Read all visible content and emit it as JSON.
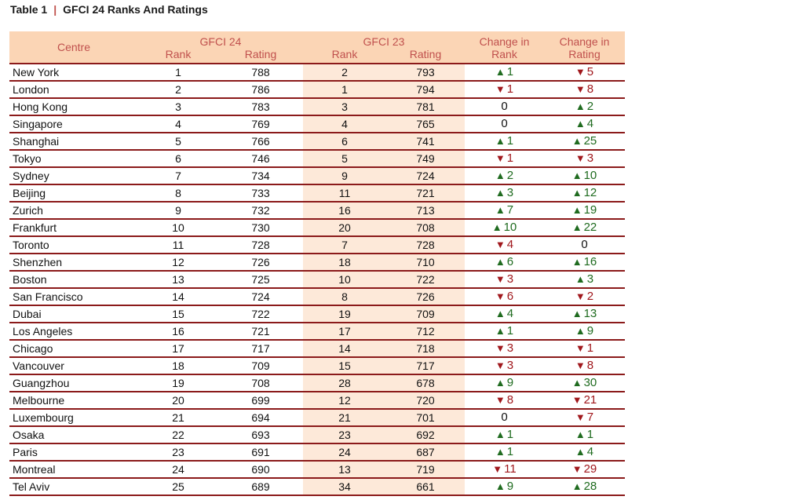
{
  "caption": {
    "label": "Table  1",
    "separator": "|",
    "title": "GFCI 24 Ranks And Ratings"
  },
  "colors": {
    "header_bg": "#fbd5b5",
    "header_text": "#c0504d",
    "shade": "#fde9d9",
    "rule": "#8b1a1a",
    "up": "#1f6b1f",
    "down": "#a0171c"
  },
  "headers": {
    "centre": "Centre",
    "gfci24": "GFCI 24",
    "gfci23": "GFCI 23",
    "change_rank_1": "Change in",
    "change_rank_2": "Rank",
    "change_rating_1": "Change in",
    "change_rating_2": "Rating",
    "rank": "Rank",
    "rating": "Rating"
  },
  "rows": [
    {
      "centre": "New York",
      "rank24": "1",
      "rating24": "788",
      "rank23": "2",
      "rating23": "793",
      "rank_change": {
        "dir": "up",
        "value": "1"
      },
      "rating_change": {
        "dir": "down",
        "value": "5"
      }
    },
    {
      "centre": "London",
      "rank24": "2",
      "rating24": "786",
      "rank23": "1",
      "rating23": "794",
      "rank_change": {
        "dir": "down",
        "value": "1"
      },
      "rating_change": {
        "dir": "down",
        "value": "8"
      }
    },
    {
      "centre": "Hong Kong",
      "rank24": "3",
      "rating24": "783",
      "rank23": "3",
      "rating23": "781",
      "rank_change": {
        "dir": "none",
        "value": "0"
      },
      "rating_change": {
        "dir": "up",
        "value": "2"
      }
    },
    {
      "centre": "Singapore",
      "rank24": "4",
      "rating24": "769",
      "rank23": "4",
      "rating23": "765",
      "rank_change": {
        "dir": "none",
        "value": "0"
      },
      "rating_change": {
        "dir": "up",
        "value": "4"
      }
    },
    {
      "centre": "Shanghai",
      "rank24": "5",
      "rating24": "766",
      "rank23": "6",
      "rating23": "741",
      "rank_change": {
        "dir": "up",
        "value": "1"
      },
      "rating_change": {
        "dir": "up",
        "value": "25"
      }
    },
    {
      "centre": "Tokyo",
      "rank24": "6",
      "rating24": "746",
      "rank23": "5",
      "rating23": "749",
      "rank_change": {
        "dir": "down",
        "value": "1"
      },
      "rating_change": {
        "dir": "down",
        "value": "3"
      }
    },
    {
      "centre": "Sydney",
      "rank24": "7",
      "rating24": "734",
      "rank23": "9",
      "rating23": "724",
      "rank_change": {
        "dir": "up",
        "value": "2"
      },
      "rating_change": {
        "dir": "up",
        "value": "10"
      }
    },
    {
      "centre": "Beijing",
      "rank24": "8",
      "rating24": "733",
      "rank23": "11",
      "rating23": "721",
      "rank_change": {
        "dir": "up",
        "value": "3"
      },
      "rating_change": {
        "dir": "up",
        "value": "12"
      }
    },
    {
      "centre": "Zurich",
      "rank24": "9",
      "rating24": "732",
      "rank23": "16",
      "rating23": "713",
      "rank_change": {
        "dir": "up",
        "value": "7"
      },
      "rating_change": {
        "dir": "up",
        "value": "19"
      }
    },
    {
      "centre": "Frankfurt",
      "rank24": "10",
      "rating24": "730",
      "rank23": "20",
      "rating23": "708",
      "rank_change": {
        "dir": "up",
        "value": "10"
      },
      "rating_change": {
        "dir": "up",
        "value": "22"
      }
    },
    {
      "centre": "Toronto",
      "rank24": "11",
      "rating24": "728",
      "rank23": "7",
      "rating23": "728",
      "rank_change": {
        "dir": "down",
        "value": "4"
      },
      "rating_change": {
        "dir": "none",
        "value": "0"
      }
    },
    {
      "centre": "Shenzhen",
      "rank24": "12",
      "rating24": "726",
      "rank23": "18",
      "rating23": "710",
      "rank_change": {
        "dir": "up",
        "value": "6"
      },
      "rating_change": {
        "dir": "up",
        "value": "16"
      }
    },
    {
      "centre": "Boston",
      "rank24": "13",
      "rating24": "725",
      "rank23": "10",
      "rating23": "722",
      "rank_change": {
        "dir": "down",
        "value": "3"
      },
      "rating_change": {
        "dir": "up",
        "value": "3"
      }
    },
    {
      "centre": "San Francisco",
      "rank24": "14",
      "rating24": "724",
      "rank23": "8",
      "rating23": "726",
      "rank_change": {
        "dir": "down",
        "value": "6"
      },
      "rating_change": {
        "dir": "down",
        "value": "2"
      }
    },
    {
      "centre": "Dubai",
      "rank24": "15",
      "rating24": "722",
      "rank23": "19",
      "rating23": "709",
      "rank_change": {
        "dir": "up",
        "value": "4"
      },
      "rating_change": {
        "dir": "up",
        "value": "13"
      }
    },
    {
      "centre": "Los Angeles",
      "rank24": "16",
      "rating24": "721",
      "rank23": "17",
      "rating23": "712",
      "rank_change": {
        "dir": "up",
        "value": "1"
      },
      "rating_change": {
        "dir": "up",
        "value": "9"
      }
    },
    {
      "centre": "Chicago",
      "rank24": "17",
      "rating24": "717",
      "rank23": "14",
      "rating23": "718",
      "rank_change": {
        "dir": "down",
        "value": "3"
      },
      "rating_change": {
        "dir": "down",
        "value": "1"
      }
    },
    {
      "centre": "Vancouver",
      "rank24": "18",
      "rating24": "709",
      "rank23": "15",
      "rating23": "717",
      "rank_change": {
        "dir": "down",
        "value": "3"
      },
      "rating_change": {
        "dir": "down",
        "value": "8"
      }
    },
    {
      "centre": "Guangzhou",
      "rank24": "19",
      "rating24": "708",
      "rank23": "28",
      "rating23": "678",
      "rank_change": {
        "dir": "up",
        "value": "9"
      },
      "rating_change": {
        "dir": "up",
        "value": "30"
      }
    },
    {
      "centre": "Melbourne",
      "rank24": "20",
      "rating24": "699",
      "rank23": "12",
      "rating23": "720",
      "rank_change": {
        "dir": "down",
        "value": "8"
      },
      "rating_change": {
        "dir": "down",
        "value": "21"
      }
    },
    {
      "centre": "Luxembourg",
      "rank24": "21",
      "rating24": "694",
      "rank23": "21",
      "rating23": "701",
      "rank_change": {
        "dir": "none",
        "value": "0"
      },
      "rating_change": {
        "dir": "down",
        "value": "7"
      }
    },
    {
      "centre": "Osaka",
      "rank24": "22",
      "rating24": "693",
      "rank23": "23",
      "rating23": "692",
      "rank_change": {
        "dir": "up",
        "value": "1"
      },
      "rating_change": {
        "dir": "up",
        "value": "1"
      }
    },
    {
      "centre": "Paris",
      "rank24": "23",
      "rating24": "691",
      "rank23": "24",
      "rating23": "687",
      "rank_change": {
        "dir": "up",
        "value": "1"
      },
      "rating_change": {
        "dir": "up",
        "value": "4"
      }
    },
    {
      "centre": "Montreal",
      "rank24": "24",
      "rating24": "690",
      "rank23": "13",
      "rating23": "719",
      "rank_change": {
        "dir": "down",
        "value": "11"
      },
      "rating_change": {
        "dir": "down",
        "value": "29"
      }
    },
    {
      "centre": "Tel Aviv",
      "rank24": "25",
      "rating24": "689",
      "rank23": "34",
      "rating23": "661",
      "rank_change": {
        "dir": "up",
        "value": "9"
      },
      "rating_change": {
        "dir": "up",
        "value": "28"
      }
    }
  ]
}
